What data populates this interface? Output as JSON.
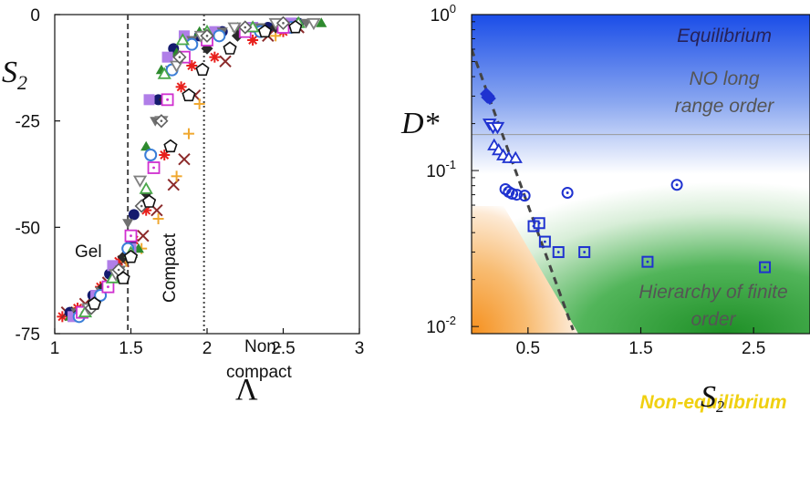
{
  "chart_data": [
    {
      "type": "scatter",
      "title": "",
      "xlabel": "Λ",
      "ylabel": "S",
      "ylabel_sub": "2",
      "xlim": [
        1,
        3
      ],
      "ylim": [
        -75,
        0
      ],
      "xticks": [
        "1",
        "1.5",
        "2",
        "2.5",
        "3"
      ],
      "yticks": [
        "0",
        "-25",
        "-50",
        "-75"
      ],
      "vlines": [
        {
          "x": 1.48,
          "style": "dashed"
        },
        {
          "x": 1.98,
          "style": "dotted"
        }
      ],
      "region_labels": {
        "gel": "Gel",
        "compact": "Compact",
        "noncompact_1": "Non-",
        "noncompact_2": "compact"
      },
      "series": [
        {
          "marker": "star-red",
          "color": "#e8201c",
          "points": [
            [
              1.05,
              -71
            ],
            [
              1.15,
              -69
            ],
            [
              1.3,
              -64
            ],
            [
              1.42,
              -58
            ],
            [
              1.52,
              -53
            ],
            [
              1.6,
              -46
            ],
            [
              1.72,
              -33
            ],
            [
              1.83,
              -17
            ],
            [
              1.9,
              -12
            ],
            [
              2.05,
              -10
            ],
            [
              2.3,
              -6
            ],
            [
              2.5,
              -4
            ]
          ]
        },
        {
          "marker": "x-brown",
          "color": "#8b2a2a",
          "points": [
            [
              1.08,
              -70
            ],
            [
              1.2,
              -68
            ],
            [
              1.35,
              -63
            ],
            [
              1.45,
              -58
            ],
            [
              1.58,
              -52
            ],
            [
              1.67,
              -46
            ],
            [
              1.78,
              -40
            ],
            [
              1.85,
              -34
            ],
            [
              1.92,
              -19
            ],
            [
              2.12,
              -11
            ],
            [
              2.4,
              -5
            ],
            [
              2.6,
              -3
            ]
          ]
        },
        {
          "marker": "plus-orange",
          "color": "#f0a830",
          "points": [
            [
              1.12,
              -70
            ],
            [
              1.25,
              -68
            ],
            [
              1.38,
              -61
            ],
            [
              1.47,
              -58
            ],
            [
              1.57,
              -55
            ],
            [
              1.68,
              -48
            ],
            [
              1.8,
              -38
            ],
            [
              1.88,
              -28
            ],
            [
              1.95,
              -21
            ],
            [
              2.15,
              -8
            ],
            [
              2.45,
              -5
            ]
          ]
        },
        {
          "marker": "circle-navy",
          "color": "#141a6e",
          "points": [
            [
              1.1,
              -70
            ],
            [
              1.25,
              -66
            ],
            [
              1.36,
              -61
            ],
            [
              1.5,
              -54
            ],
            [
              1.52,
              -47
            ],
            [
              1.68,
              -20
            ],
            [
              1.78,
              -8
            ],
            [
              1.95,
              -5
            ],
            [
              2.1,
              -4
            ],
            [
              2.4,
              -3
            ],
            [
              2.6,
              -2
            ]
          ]
        },
        {
          "marker": "triangle-green",
          "color": "#2e8a2e",
          "points": [
            [
              1.1,
              -71
            ],
            [
              1.25,
              -67
            ],
            [
              1.4,
              -61
            ],
            [
              1.55,
              -55
            ],
            [
              1.6,
              -31
            ],
            [
              1.7,
              -13
            ],
            [
              1.8,
              -9
            ],
            [
              1.95,
              -4
            ],
            [
              2.2,
              -3
            ],
            [
              2.5,
              -2
            ],
            [
              2.75,
              -2
            ]
          ]
        },
        {
          "marker": "square-purple",
          "color": "#b07ee8",
          "points": [
            [
              1.12,
              -71
            ],
            [
              1.27,
              -66
            ],
            [
              1.38,
              -59
            ],
            [
              1.5,
              -55
            ],
            [
              1.62,
              -20
            ],
            [
              1.74,
              -10
            ],
            [
              1.85,
              -5
            ],
            [
              2.05,
              -4
            ],
            [
              2.3,
              -3
            ],
            [
              2.55,
              -2
            ]
          ]
        },
        {
          "marker": "triangle-down-gray",
          "color": "#707070",
          "points": [
            [
              1.14,
              -70
            ],
            [
              1.3,
              -65
            ],
            [
              1.43,
              -60
            ],
            [
              1.48,
              -49
            ],
            [
              1.66,
              -25
            ],
            [
              1.76,
              -13
            ],
            [
              1.9,
              -6
            ],
            [
              2.1,
              -4
            ],
            [
              2.35,
              -3
            ],
            [
              2.65,
              -2
            ]
          ]
        },
        {
          "marker": "diamond-black",
          "color": "#2a2a2a",
          "points": [
            [
              1.16,
              -70
            ],
            [
              1.32,
              -64
            ],
            [
              1.45,
              -57
            ],
            [
              1.6,
              -42
            ],
            [
              1.72,
              -20
            ],
            [
              1.85,
              -10
            ],
            [
              2.0,
              -8
            ],
            [
              2.2,
              -5
            ],
            [
              2.45,
              -3
            ]
          ]
        },
        {
          "marker": "circle-open-blue",
          "color": "#3a7ed8",
          "points": [
            [
              1.16,
              -71
            ],
            [
              1.3,
              -66
            ],
            [
              1.48,
              -55
            ],
            [
              1.63,
              -33
            ],
            [
              1.77,
              -13
            ],
            [
              1.9,
              -7
            ],
            [
              2.08,
              -5
            ],
            [
              2.35,
              -4
            ],
            [
              2.55,
              -3
            ]
          ]
        },
        {
          "marker": "square-open-magenta",
          "color": "#d030d0",
          "points": [
            [
              1.18,
              -70
            ],
            [
              1.35,
              -64
            ],
            [
              1.5,
              -52
            ],
            [
              1.65,
              -36
            ],
            [
              1.74,
              -20
            ],
            [
              1.85,
              -10
            ],
            [
              2.0,
              -6
            ],
            [
              2.25,
              -4
            ],
            [
              2.5,
              -3
            ]
          ]
        },
        {
          "marker": "triangle-open-green",
          "color": "#4aa84a",
          "points": [
            [
              1.2,
              -70
            ],
            [
              1.38,
              -62
            ],
            [
              1.5,
              -56
            ],
            [
              1.6,
              -41
            ],
            [
              1.72,
              -14
            ],
            [
              1.84,
              -6
            ],
            [
              2.0,
              -4
            ],
            [
              2.3,
              -3
            ],
            [
              2.6,
              -2
            ]
          ]
        },
        {
          "marker": "triangle-down-open-gray",
          "color": "#808080",
          "points": [
            [
              1.22,
              -69
            ],
            [
              1.4,
              -61
            ],
            [
              1.56,
              -39
            ],
            [
              1.7,
              -25
            ],
            [
              1.8,
              -12
            ],
            [
              1.96,
              -5
            ],
            [
              2.18,
              -3
            ],
            [
              2.45,
              -2
            ],
            [
              2.7,
              -2
            ]
          ]
        },
        {
          "marker": "diamond-open-gray",
          "color": "#606060",
          "points": [
            [
              1.24,
              -69
            ],
            [
              1.42,
              -60
            ],
            [
              1.57,
              -45
            ],
            [
              1.7,
              -25
            ],
            [
              1.82,
              -10
            ],
            [
              2.0,
              -5
            ],
            [
              2.25,
              -3
            ],
            [
              2.5,
              -2
            ]
          ]
        },
        {
          "marker": "pentagon-open-black",
          "color": "#111111",
          "points": [
            [
              1.26,
              -68
            ],
            [
              1.45,
              -62
            ],
            [
              1.5,
              -57
            ],
            [
              1.62,
              -44
            ],
            [
              1.76,
              -31
            ],
            [
              1.88,
              -19
            ],
            [
              1.97,
              -13
            ],
            [
              2.15,
              -8
            ],
            [
              2.38,
              -4
            ],
            [
              2.58,
              -3
            ]
          ]
        }
      ]
    },
    {
      "type": "scatter",
      "title": "",
      "xlabel": "S",
      "xlabel_sub": "2",
      "ylabel": "D*",
      "xlim": [
        0,
        3
      ],
      "ylim": [
        0.009,
        1.0
      ],
      "yscale": "log",
      "xticks": [
        "0.5",
        "1.5",
        "2.5"
      ],
      "yticks": [
        "10",
        "10",
        "10"
      ],
      "ytick_exponents": [
        "0",
        "-1",
        "-2"
      ],
      "hline": 0.17,
      "dashed_boundary": [
        [
          0.0,
          0.6
        ],
        [
          0.9,
          0.0095
        ]
      ],
      "annotations": {
        "equilibrium": "Equilibrium",
        "no_long_1": "NO long",
        "no_long_2": "range order",
        "hierarchy_1": "Hierarchy of finite",
        "hierarchy_2": "order",
        "nonequilibrium": "Non-equilibrium"
      },
      "colors": {
        "blue_top": "#1a4de8",
        "green": "#239a2a",
        "orange": "#f5982a",
        "label_dark": "#26225a",
        "label_gray": "#555555",
        "label_yellow": "#f0d010",
        "marker_blue": "#1f32d0"
      },
      "series": [
        {
          "marker": "diamond-filled",
          "points": [
            [
              0.13,
              0.31
            ],
            [
              0.15,
              0.3
            ],
            [
              0.16,
              0.29
            ],
            [
              0.14,
              0.295
            ]
          ]
        },
        {
          "marker": "triangle-down-open",
          "points": [
            [
              0.16,
              0.2
            ],
            [
              0.19,
              0.19
            ],
            [
              0.23,
              0.19
            ]
          ]
        },
        {
          "marker": "triangle-open",
          "points": [
            [
              0.2,
              0.145
            ],
            [
              0.24,
              0.135
            ],
            [
              0.28,
              0.125
            ],
            [
              0.33,
              0.12
            ],
            [
              0.39,
              0.12
            ]
          ]
        },
        {
          "marker": "circle-dot",
          "points": [
            [
              0.3,
              0.076
            ],
            [
              0.33,
              0.073
            ],
            [
              0.36,
              0.071
            ],
            [
              0.4,
              0.07
            ],
            [
              0.47,
              0.069
            ],
            [
              0.85,
              0.072
            ],
            [
              1.82,
              0.081
            ]
          ]
        },
        {
          "marker": "square-dot",
          "points": [
            [
              0.55,
              0.044
            ],
            [
              0.6,
              0.046
            ],
            [
              0.65,
              0.035
            ],
            [
              0.77,
              0.03
            ],
            [
              1.0,
              0.03
            ],
            [
              1.56,
              0.026
            ],
            [
              2.6,
              0.024
            ]
          ]
        }
      ]
    }
  ]
}
